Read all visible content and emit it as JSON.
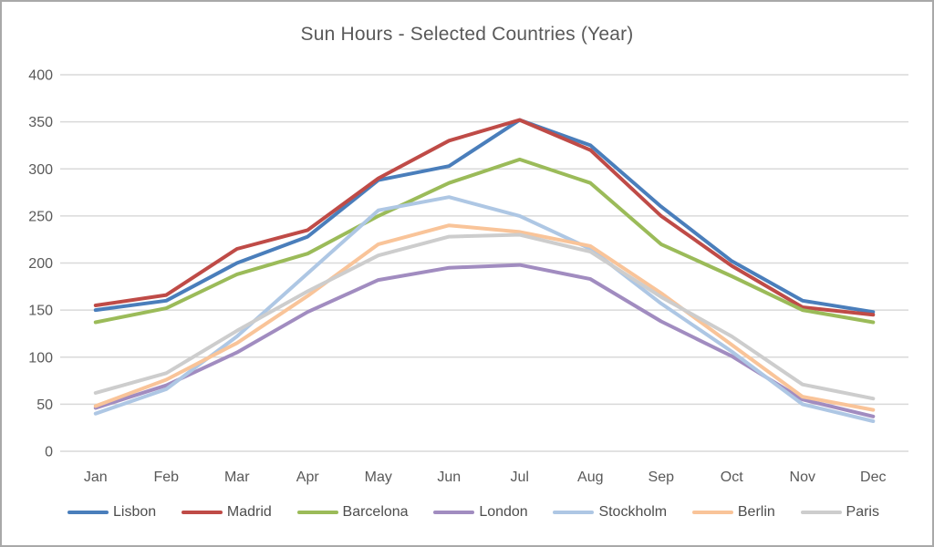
{
  "chart_data": {
    "type": "line",
    "title": "Sun Hours - Selected Countries (Year)",
    "xlabel": "",
    "ylabel": "",
    "ylim": [
      0,
      400
    ],
    "ytick_step": 50,
    "grid": "horizontal",
    "legend_position": "bottom",
    "axis_text_color": "#595959",
    "gridline_color": "#d9d9d9",
    "categories": [
      "Jan",
      "Feb",
      "Mar",
      "Apr",
      "May",
      "Jun",
      "Jul",
      "Aug",
      "Sep",
      "Oct",
      "Nov",
      "Dec"
    ],
    "series": [
      {
        "name": "Lisbon",
        "color": "#4a7ebb",
        "values": [
          150,
          160,
          200,
          228,
          288,
          303,
          352,
          325,
          260,
          202,
          160,
          148
        ]
      },
      {
        "name": "Madrid",
        "color": "#bf4b47",
        "values": [
          155,
          166,
          215,
          235,
          290,
          330,
          352,
          320,
          250,
          197,
          153,
          145
        ]
      },
      {
        "name": "Barcelona",
        "color": "#9bbb59",
        "values": [
          137,
          152,
          188,
          210,
          250,
          285,
          310,
          285,
          220,
          186,
          150,
          137
        ]
      },
      {
        "name": "London",
        "color": "#a18cc0",
        "values": [
          46,
          70,
          105,
          148,
          182,
          195,
          198,
          183,
          138,
          101,
          55,
          37
        ]
      },
      {
        "name": "Stockholm",
        "color": "#aec7e4",
        "values": [
          40,
          66,
          122,
          189,
          256,
          270,
          250,
          215,
          157,
          106,
          50,
          32
        ]
      },
      {
        "name": "Berlin",
        "color": "#f9c499",
        "values": [
          48,
          76,
          115,
          165,
          220,
          240,
          233,
          218,
          168,
          113,
          58,
          44
        ]
      },
      {
        "name": "Paris",
        "color": "#cdcdcd",
        "values": [
          62,
          83,
          128,
          170,
          208,
          228,
          230,
          212,
          164,
          122,
          71,
          56
        ]
      }
    ]
  }
}
